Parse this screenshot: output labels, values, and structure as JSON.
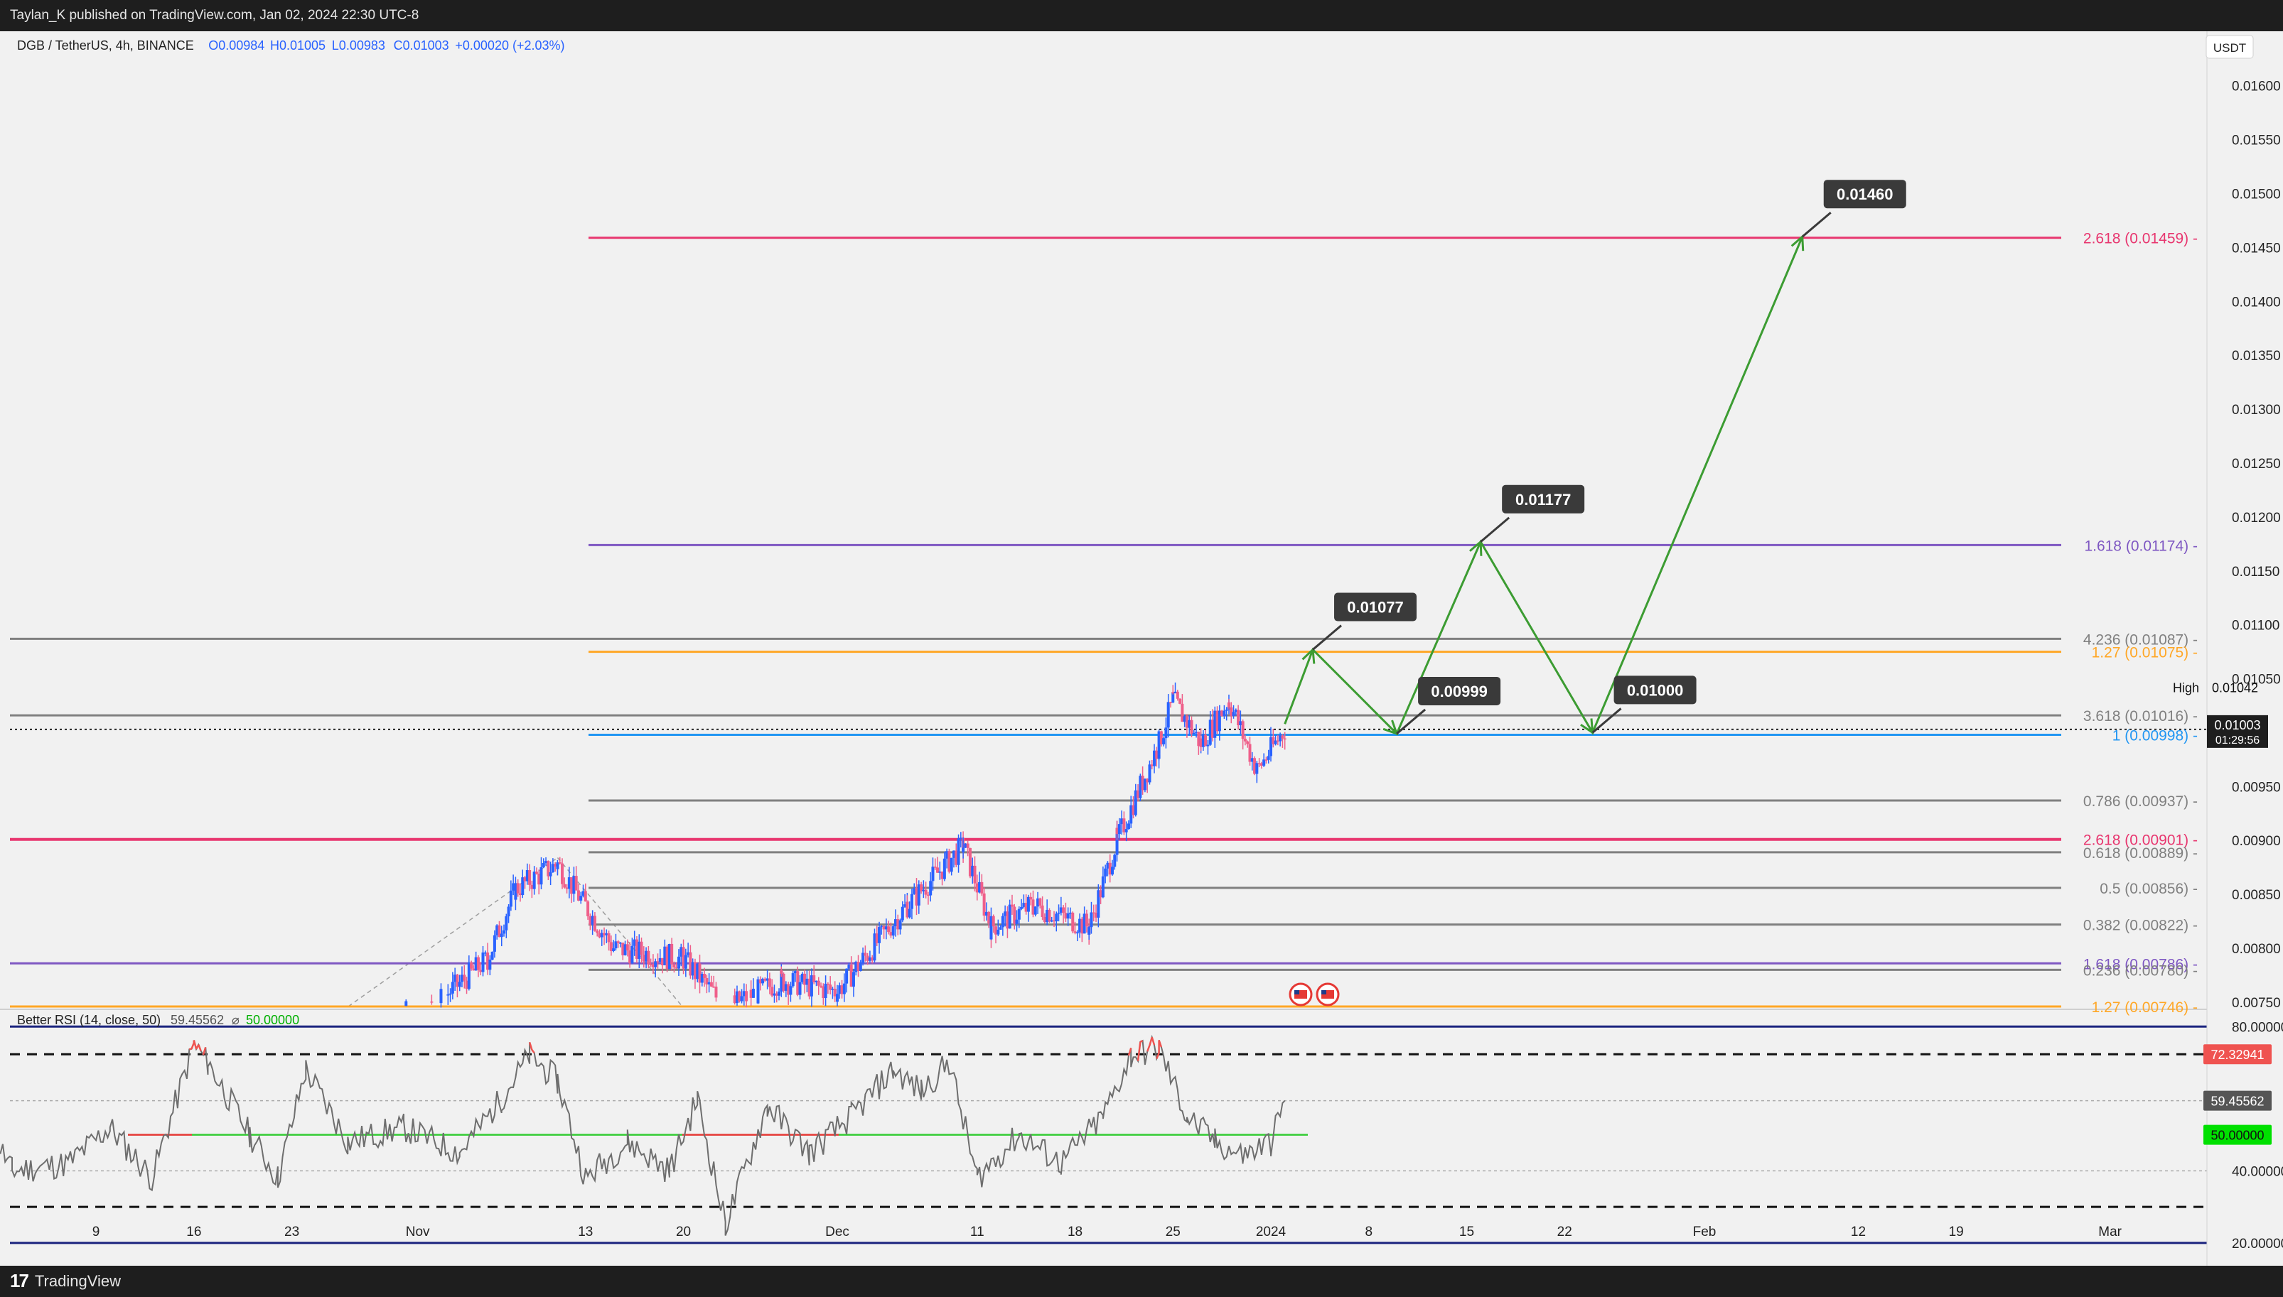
{
  "header": {
    "published": "Taylan_K published on TradingView.com, Jan 02, 2024 22:30 UTC-8"
  },
  "footer": {
    "logo_text": "TradingView",
    "logo_icon": "tradingview-logo-icon"
  },
  "symbol_bar": {
    "symbol": "DGB / TetherUS, 4h, BINANCE",
    "open": "O0.00984",
    "high": "H0.01005",
    "low": "L0.00983",
    "close": "C0.01003",
    "change": "+0.00020 (+2.03%)",
    "currency": "USDT"
  },
  "colors": {
    "up": "#2962ff",
    "down": "#ef5f8a",
    "green_path": "#3c9c32",
    "fib_red": "#e8366f",
    "fib_purple": "#7e57c2",
    "fib_orange": "#ffa726",
    "fib_gray": "#808080",
    "fib_blue": "#2196f3",
    "rsi_navy": "#1a237e"
  },
  "chart_data": [
    {
      "type": "candlestick",
      "title": "DGB / TetherUS, 4h, BINANCE",
      "x_tick_labels": [
        "9",
        "16",
        "23",
        "Nov",
        "13",
        "20",
        "Dec",
        "11",
        "18",
        "25",
        "2024",
        "8",
        "15",
        "22",
        "Feb",
        "12",
        "19",
        "Mar"
      ],
      "y_tick_labels": [
        "0.01600",
        "0.01550",
        "0.01500",
        "0.01450",
        "0.01400",
        "0.01350",
        "0.01300",
        "0.01250",
        "0.01200",
        "0.01150",
        "0.01100",
        "0.01050",
        "0.00950",
        "0.00900",
        "0.00850",
        "0.00800",
        "0.00750"
      ],
      "ylim": [
        0.00744,
        0.0164
      ],
      "scale": "linear",
      "grid": false,
      "last_price": "0.01003",
      "countdown": "01:29:56",
      "high_label": "High",
      "high_value": "0.01042",
      "price_series_approx": [
        {
          "date": "2023-10-25",
          "close": 0.00736
        },
        {
          "date": "2023-11-02",
          "close": 0.00745
        },
        {
          "date": "2023-11-06",
          "close": 0.0079
        },
        {
          "date": "2023-11-08",
          "close": 0.00855
        },
        {
          "date": "2023-11-11",
          "close": 0.00878
        },
        {
          "date": "2023-11-15",
          "close": 0.008
        },
        {
          "date": "2023-11-20",
          "close": 0.0079
        },
        {
          "date": "2023-11-23",
          "close": 0.00745
        },
        {
          "date": "2023-11-27",
          "close": 0.0077
        },
        {
          "date": "2023-12-01",
          "close": 0.0076
        },
        {
          "date": "2023-12-06",
          "close": 0.0084
        },
        {
          "date": "2023-12-10",
          "close": 0.00895
        },
        {
          "date": "2023-12-12",
          "close": 0.0082
        },
        {
          "date": "2023-12-15",
          "close": 0.0084
        },
        {
          "date": "2023-12-19",
          "close": 0.0082
        },
        {
          "date": "2023-12-21",
          "close": 0.009
        },
        {
          "date": "2023-12-24",
          "close": 0.0099
        },
        {
          "date": "2023-12-25",
          "close": 0.0103
        },
        {
          "date": "2023-12-27",
          "close": 0.0099
        },
        {
          "date": "2023-12-29",
          "close": 0.0103
        },
        {
          "date": "2023-12-31",
          "close": 0.00965
        },
        {
          "date": "2024-01-02",
          "close": 0.01003
        }
      ],
      "fib_levels": [
        {
          "label": "2.618 (0.01459)",
          "value": 0.01459,
          "color": "#e8366f",
          "extended_left": false
        },
        {
          "label": "1.618 (0.01174)",
          "value": 0.01174,
          "color": "#7e57c2",
          "extended_left": false
        },
        {
          "label": "4.236 (0.01087)",
          "value": 0.01087,
          "color": "#808080",
          "extended_left": true
        },
        {
          "label": "1.27 (0.01075)",
          "value": 0.01075,
          "color": "#ffa726",
          "extended_left": false
        },
        {
          "label": "3.618 (0.01016)",
          "value": 0.01016,
          "color": "#808080",
          "extended_left": true
        },
        {
          "label": "1 (0.00998)",
          "value": 0.00998,
          "color": "#2196f3",
          "extended_left": false
        },
        {
          "label": "0.786 (0.00937)",
          "value": 0.00937,
          "color": "#808080",
          "extended_left": false
        },
        {
          "label": "2.618 (0.00901)",
          "value": 0.00901,
          "color": "#e8366f",
          "extended_left": true
        },
        {
          "label": "0.618 (0.00889)",
          "value": 0.00889,
          "color": "#808080",
          "extended_left": false
        },
        {
          "label": "0.5 (0.00856)",
          "value": 0.00856,
          "color": "#808080",
          "extended_left": false
        },
        {
          "label": "0.382 (0.00822)",
          "value": 0.00822,
          "color": "#808080",
          "extended_left": false
        },
        {
          "label": "1.618 (0.00786)",
          "value": 0.00786,
          "color": "#7e57c2",
          "extended_left": true
        },
        {
          "label": "0.236 (0.00780)",
          "value": 0.0078,
          "color": "#808080",
          "extended_left": false
        },
        {
          "label": "1.27 (0.00746)",
          "value": 0.00746,
          "color": "#ffa726",
          "extended_left": true
        }
      ],
      "projection_path": [
        {
          "date": "2024-01-02",
          "price": 0.01008
        },
        {
          "date": "2024-01-04",
          "price": 0.01077
        },
        {
          "date": "2024-01-10",
          "price": 0.00999
        },
        {
          "date": "2024-01-16",
          "price": 0.01177
        },
        {
          "date": "2024-01-24",
          "price": 0.01
        },
        {
          "date": "2024-02-08",
          "price": 0.0146
        }
      ],
      "target_labels": [
        {
          "text": "0.01460",
          "date": "2024-02-08",
          "price": 0.0146
        },
        {
          "text": "0.01177",
          "date": "2024-01-16",
          "price": 0.01177
        },
        {
          "text": "0.01077",
          "date": "2024-01-04",
          "price": 0.01077
        },
        {
          "text": "0.00999",
          "date": "2024-01-10",
          "price": 0.00999
        },
        {
          "text": "0.01000",
          "date": "2024-01-24",
          "price": 0.01
        }
      ],
      "event_icons": [
        "us-flag-icon",
        "us-flag-icon"
      ]
    },
    {
      "type": "line",
      "title": "Better RSI (14, close, 50)",
      "value_label": "59.45562",
      "marker_symbol": "⌀",
      "midline_label": "50.00000",
      "y_tick_labels": [
        "80.00000",
        "40.00000",
        "20.00000"
      ],
      "ylim": [
        18,
        84
      ],
      "upper_band": 80,
      "lower_band": 20,
      "overbought": 72.32941,
      "oversold": 30,
      "midline": 50,
      "current": 59.45562,
      "price_boxes": [
        {
          "text": "72.32941",
          "value": 72.32941,
          "color": "#ef5350"
        },
        {
          "text": "59.45562",
          "value": 59.45562,
          "color": "#555555"
        },
        {
          "text": "50.00000",
          "value": 50,
          "color": "#00e000"
        }
      ],
      "series_approx": [
        {
          "date": "2023-10-01",
          "value": 55
        },
        {
          "date": "2023-10-03",
          "value": 40
        },
        {
          "date": "2023-10-07",
          "value": 42
        },
        {
          "date": "2023-10-10",
          "value": 52
        },
        {
          "date": "2023-10-13",
          "value": 38
        },
        {
          "date": "2023-10-16",
          "value": 75
        },
        {
          "date": "2023-10-17",
          "value": 70
        },
        {
          "date": "2023-10-20",
          "value": 50
        },
        {
          "date": "2023-10-22",
          "value": 38
        },
        {
          "date": "2023-10-24",
          "value": 68
        },
        {
          "date": "2023-10-27",
          "value": 48
        },
        {
          "date": "2023-10-31",
          "value": 52
        },
        {
          "date": "2023-11-04",
          "value": 45
        },
        {
          "date": "2023-11-07",
          "value": 60
        },
        {
          "date": "2023-11-09",
          "value": 72
        },
        {
          "date": "2023-11-11",
          "value": 65
        },
        {
          "date": "2023-11-13",
          "value": 38
        },
        {
          "date": "2023-11-16",
          "value": 48
        },
        {
          "date": "2023-11-19",
          "value": 40
        },
        {
          "date": "2023-11-21",
          "value": 60
        },
        {
          "date": "2023-11-23",
          "value": 25
        },
        {
          "date": "2023-11-26",
          "value": 58
        },
        {
          "date": "2023-11-29",
          "value": 45
        },
        {
          "date": "2023-12-02",
          "value": 55
        },
        {
          "date": "2023-12-05",
          "value": 68
        },
        {
          "date": "2023-12-07",
          "value": 62
        },
        {
          "date": "2023-12-09",
          "value": 70
        },
        {
          "date": "2023-12-11",
          "value": 38
        },
        {
          "date": "2023-12-14",
          "value": 50
        },
        {
          "date": "2023-12-17",
          "value": 42
        },
        {
          "date": "2023-12-20",
          "value": 55
        },
        {
          "date": "2023-12-22",
          "value": 72
        },
        {
          "date": "2023-12-24",
          "value": 74
        },
        {
          "date": "2023-12-26",
          "value": 55
        },
        {
          "date": "2023-12-28",
          "value": 48
        },
        {
          "date": "2023-12-30",
          "value": 44
        },
        {
          "date": "2024-01-01",
          "value": 48
        },
        {
          "date": "2024-01-02",
          "value": 59.46
        }
      ]
    }
  ]
}
